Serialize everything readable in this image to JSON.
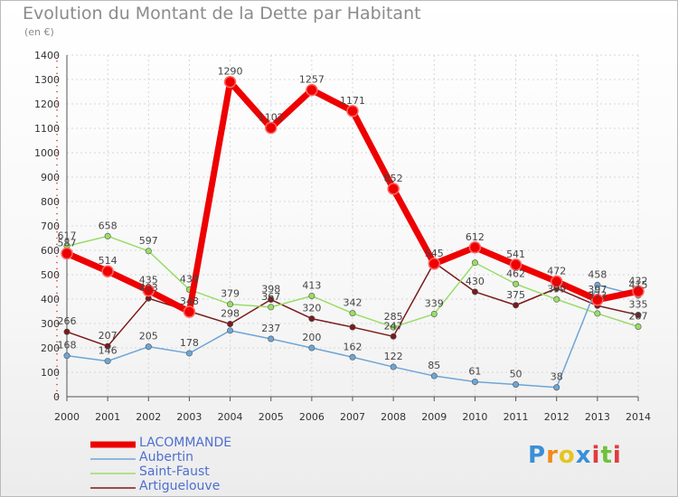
{
  "chart_data": {
    "type": "line",
    "title": "Evolution du Montant de la Dette par Habitant",
    "subtitle": "(en €)",
    "categories": [
      "2000",
      "2001",
      "2002",
      "2003",
      "2004",
      "2005",
      "2006",
      "2007",
      "2008",
      "2009",
      "2010",
      "2011",
      "2012",
      "2013",
      "2014"
    ],
    "ylim": [
      0,
      1400
    ],
    "yticks": [
      0,
      100,
      200,
      300,
      400,
      500,
      600,
      700,
      800,
      900,
      1000,
      1100,
      1200,
      1300,
      1400
    ],
    "grid": true,
    "legend_position": "bottom-left",
    "series": [
      {
        "name": "LACOMMANDE",
        "color": "#ee0000",
        "values": [
          587,
          514,
          435,
          348,
          1290,
          1102,
          1257,
          1171,
          852,
          545,
          612,
          541,
          472,
          397,
          432
        ],
        "labels": [
          "587",
          "514",
          "435",
          "348",
          "1290",
          "1102",
          "1257",
          "1171",
          "852",
          "545",
          "612",
          "541",
          "472",
          "397",
          "432"
        ]
      },
      {
        "name": "Aubertin",
        "color": "#6ea5d6",
        "values": [
          168,
          146,
          205,
          178,
          271,
          237,
          200,
          162,
          122,
          85,
          61,
          50,
          38,
          458,
          415
        ],
        "labels": [
          "168",
          "146",
          "205",
          "178",
          "",
          "237",
          "200",
          "162",
          "122",
          "85",
          "61",
          "50",
          "38",
          "458",
          "415"
        ]
      },
      {
        "name": "Saint-Faust",
        "color": "#99dd66",
        "values": [
          617,
          658,
          597,
          439,
          379,
          367,
          413,
          342,
          285,
          339,
          549,
          462,
          399,
          341,
          287
        ],
        "labels": [
          "617",
          "658",
          "597",
          "439",
          "379",
          "367",
          "413",
          "342",
          "285",
          "339",
          "",
          "462",
          "399",
          "",
          "287"
        ]
      },
      {
        "name": "Artiguelouve",
        "color": "#7a1a1a",
        "values": [
          266,
          207,
          403,
          350,
          298,
          398,
          320,
          285,
          247,
          550,
          430,
          375,
          444,
          373,
          335
        ],
        "labels": [
          "266",
          "207",
          "403",
          "",
          "298",
          "398",
          "320",
          "",
          "247",
          "",
          "430",
          "375",
          "",
          "373",
          "335"
        ]
      }
    ]
  },
  "logo": {
    "letters": [
      "P",
      "r",
      "o",
      "x",
      "i",
      "t",
      "i"
    ],
    "colors": [
      "#3a8fd8",
      "#f08a1c",
      "#e6c520",
      "#3a8fd8",
      "#e23b3b",
      "#6fc13a",
      "#e23b3b"
    ]
  }
}
